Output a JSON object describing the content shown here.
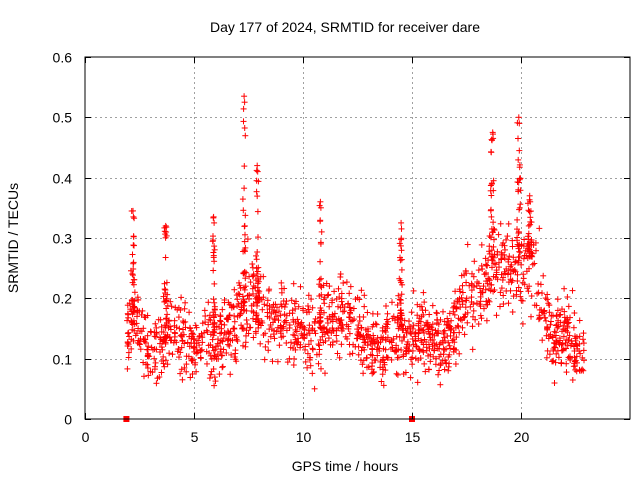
{
  "chart_data": {
    "type": "scatter",
    "title": "Day 177 of 2024, SRMTID for receiver dare",
    "xlabel": "GPS time / hours",
    "ylabel": "SRMTID / TECUs",
    "xlim": [
      0,
      25
    ],
    "ylim": [
      0,
      0.6
    ],
    "x_ticks": [
      0,
      5,
      10,
      15,
      20
    ],
    "x_tick_labels": [
      "0",
      "5",
      "10",
      "15",
      "20"
    ],
    "y_ticks": [
      0,
      0.1,
      0.2,
      0.3,
      0.4,
      0.5,
      0.6
    ],
    "y_tick_labels": [
      "0",
      "0.1",
      "0.2",
      "0.3",
      "0.4",
      "0.5",
      "0.6"
    ],
    "grid": true,
    "marker": "+",
    "color": "#ff0000",
    "x_range_data": [
      1.9,
      22.9
    ],
    "zero_points": [
      [
        1.9,
        0
      ],
      [
        15.0,
        0
      ]
    ],
    "profile": [
      [
        1.9,
        0.14
      ],
      [
        2.2,
        0.18
      ],
      [
        2.5,
        0.15
      ],
      [
        3.0,
        0.1
      ],
      [
        3.5,
        0.12
      ],
      [
        4.0,
        0.15
      ],
      [
        4.5,
        0.13
      ],
      [
        5.0,
        0.12
      ],
      [
        5.5,
        0.14
      ],
      [
        6.0,
        0.12
      ],
      [
        6.5,
        0.15
      ],
      [
        7.0,
        0.17
      ],
      [
        7.5,
        0.2
      ],
      [
        8.0,
        0.18
      ],
      [
        8.5,
        0.16
      ],
      [
        9.0,
        0.16
      ],
      [
        9.5,
        0.15
      ],
      [
        10.0,
        0.15
      ],
      [
        10.5,
        0.13
      ],
      [
        11.0,
        0.16
      ],
      [
        11.5,
        0.17
      ],
      [
        12.0,
        0.18
      ],
      [
        12.5,
        0.14
      ],
      [
        13.0,
        0.12
      ],
      [
        13.5,
        0.12
      ],
      [
        14.0,
        0.13
      ],
      [
        14.5,
        0.15
      ],
      [
        15.0,
        0.13
      ],
      [
        15.5,
        0.15
      ],
      [
        16.0,
        0.13
      ],
      [
        16.5,
        0.12
      ],
      [
        17.0,
        0.16
      ],
      [
        17.5,
        0.21
      ],
      [
        18.0,
        0.2
      ],
      [
        18.5,
        0.24
      ],
      [
        19.0,
        0.26
      ],
      [
        19.5,
        0.24
      ],
      [
        20.0,
        0.26
      ],
      [
        20.5,
        0.27
      ],
      [
        21.0,
        0.18
      ],
      [
        21.5,
        0.13
      ],
      [
        22.0,
        0.14
      ],
      [
        22.5,
        0.12
      ],
      [
        22.9,
        0.1
      ]
    ],
    "bursts": [
      {
        "x": 2.2,
        "peak": 0.345,
        "width": 0.15
      },
      {
        "x": 3.7,
        "peak": 0.32,
        "width": 0.15
      },
      {
        "x": 5.9,
        "peak": 0.335,
        "width": 0.12
      },
      {
        "x": 7.3,
        "peak": 0.535,
        "width": 0.12
      },
      {
        "x": 7.9,
        "peak": 0.42,
        "width": 0.15
      },
      {
        "x": 10.8,
        "peak": 0.36,
        "width": 0.12
      },
      {
        "x": 14.5,
        "peak": 0.325,
        "width": 0.12
      },
      {
        "x": 18.7,
        "peak": 0.475,
        "width": 0.18
      },
      {
        "x": 19.9,
        "peak": 0.5,
        "width": 0.15
      },
      {
        "x": 20.4,
        "peak": 0.37,
        "width": 0.18
      }
    ],
    "spread": 0.05,
    "n_points": 1500
  }
}
